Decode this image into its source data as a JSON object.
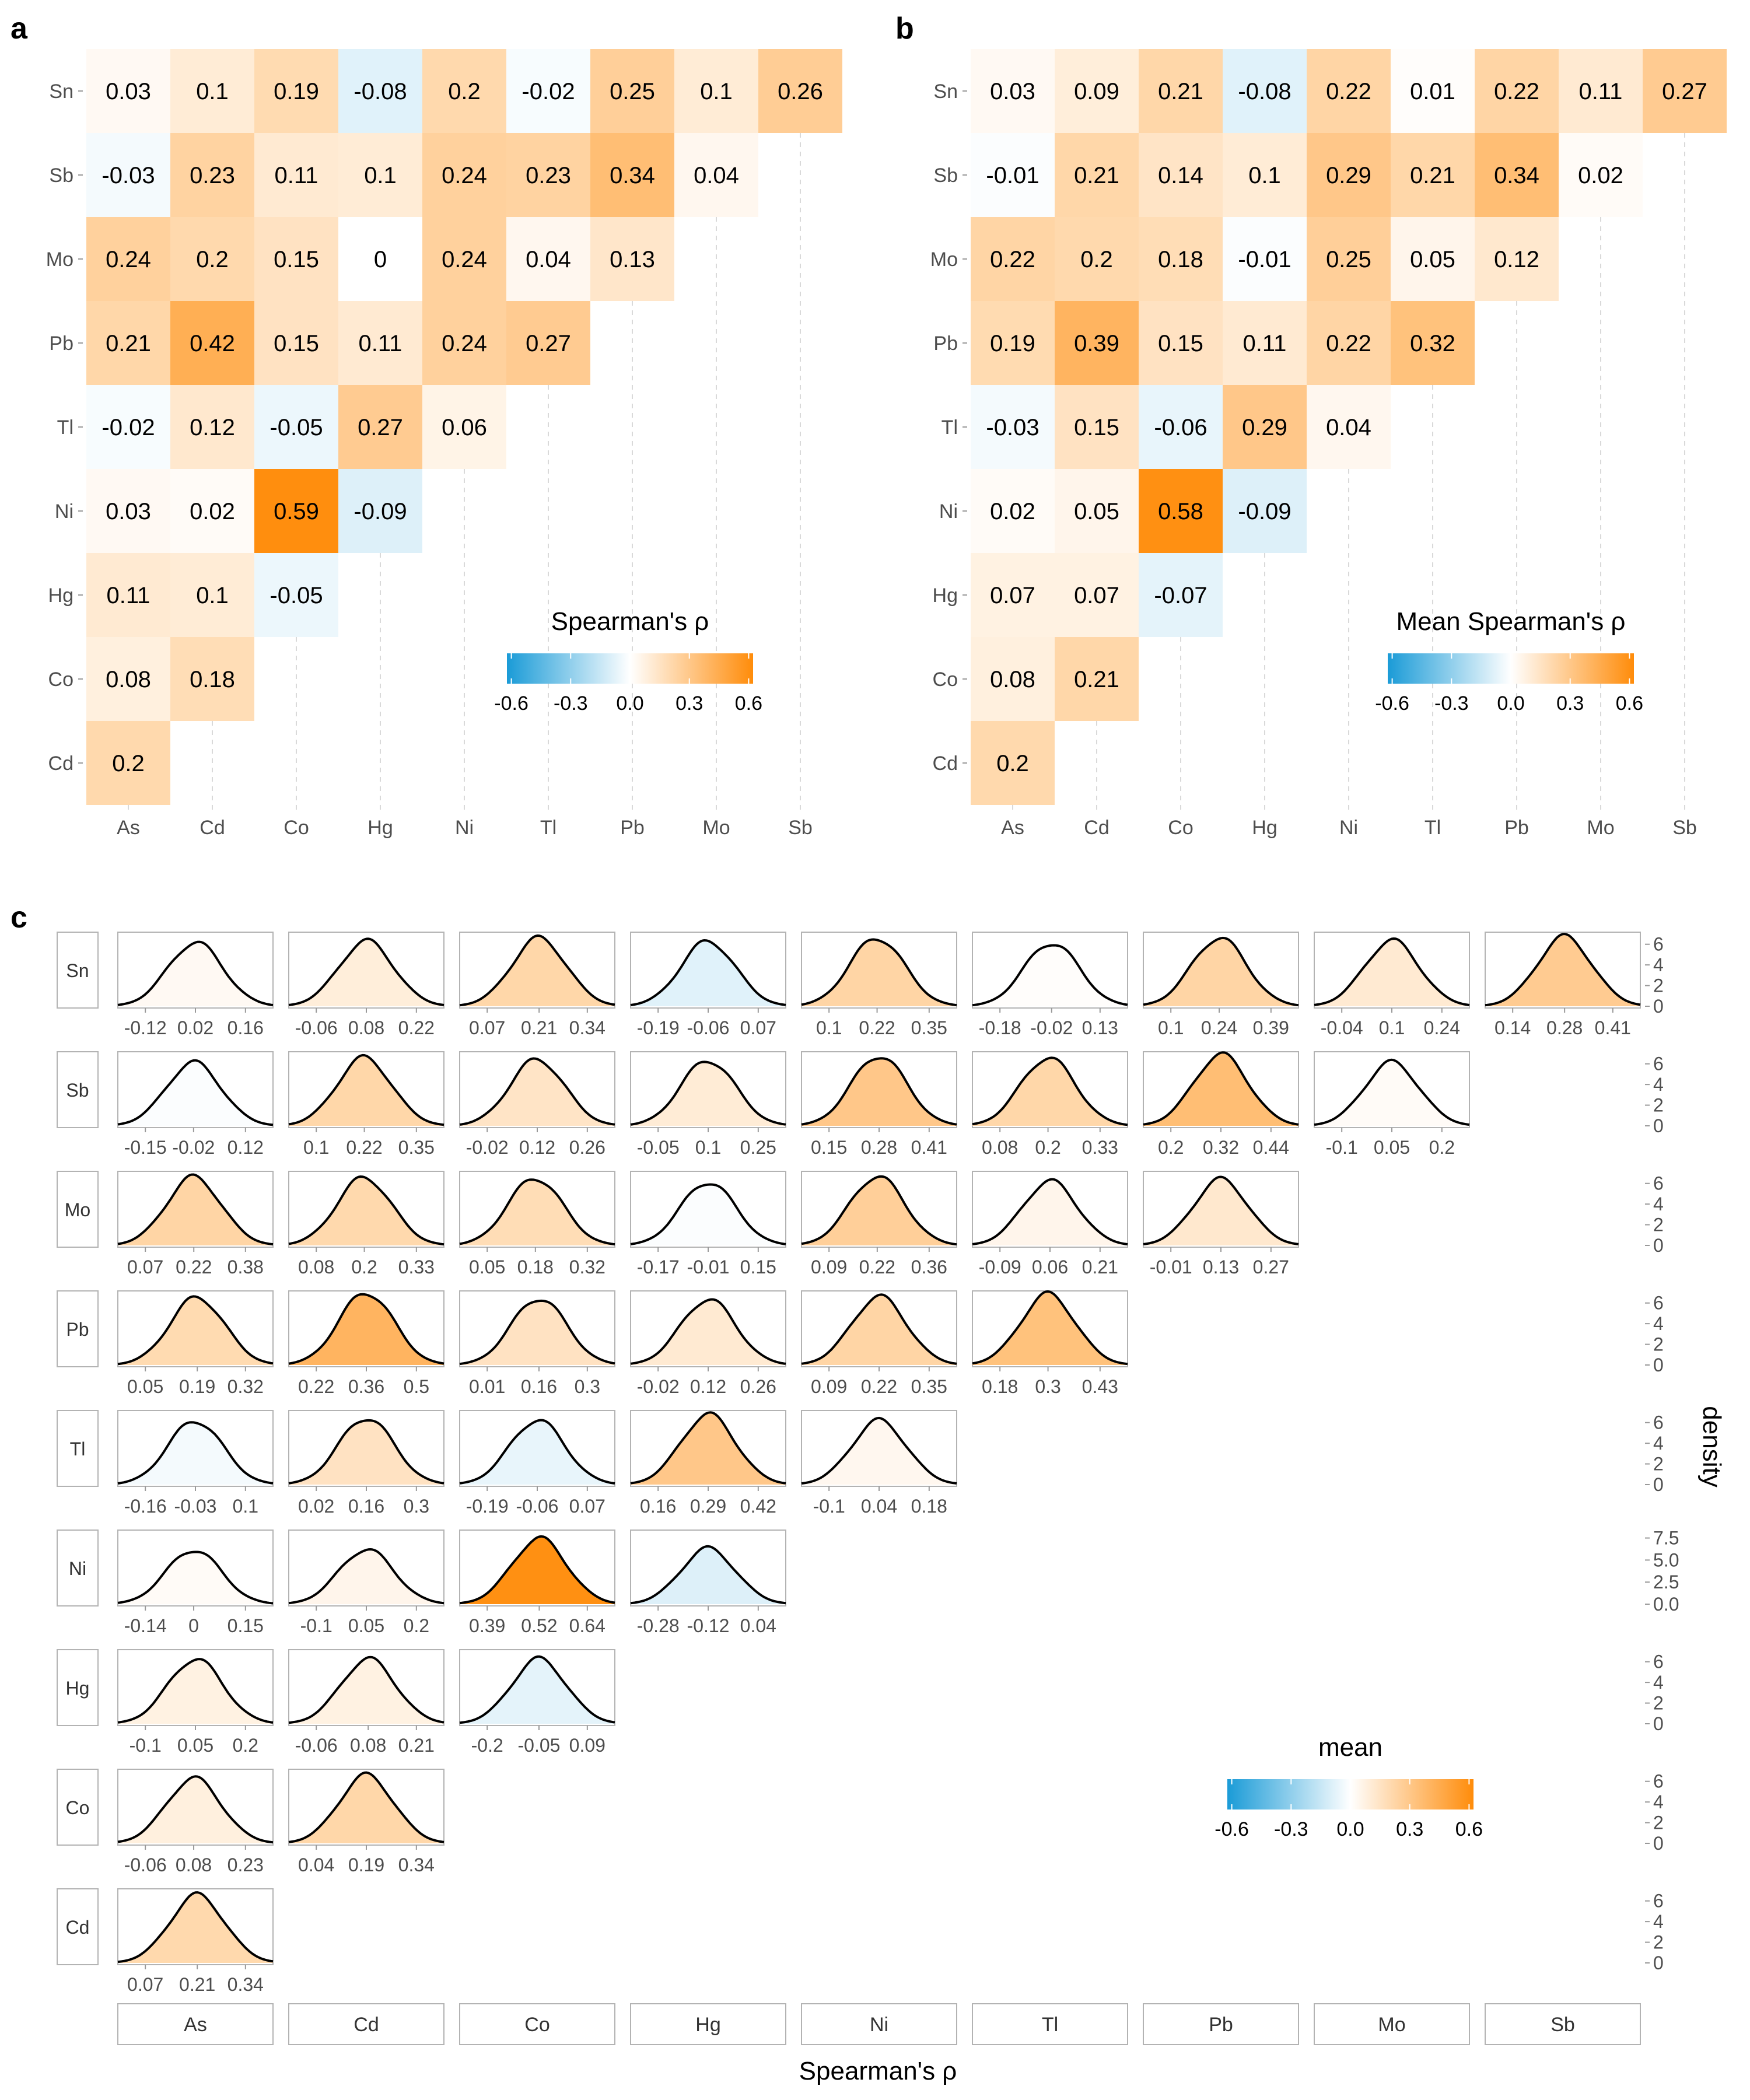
{
  "figure": {
    "panel_labels": [
      "a",
      "b",
      "c"
    ],
    "colors": {
      "negative": "#1a9bd7",
      "zero": "#ffffff",
      "positive": "#ff8c0a",
      "text": "#000000",
      "axis_text": "#4d4d4d",
      "strip_border": "#b3b3b3",
      "grid": "#d9d9d9"
    }
  },
  "chart_data": [
    {
      "panel": "a",
      "type": "heatmap",
      "x_categories": [
        "As",
        "Cd",
        "Co",
        "Hg",
        "Ni",
        "Tl",
        "Pb",
        "Mo",
        "Sb"
      ],
      "y_categories": [
        "Sn",
        "Sb",
        "Mo",
        "Pb",
        "Tl",
        "Ni",
        "Hg",
        "Co",
        "Cd"
      ],
      "values": [
        [
          "0.03",
          "0.1",
          "0.19",
          "-0.08",
          "0.2",
          "-0.02",
          "0.25",
          "0.1",
          "0.26"
        ],
        [
          "-0.03",
          "0.23",
          "0.11",
          "0.1",
          "0.24",
          "0.23",
          "0.34",
          "0.04"
        ],
        [
          "0.24",
          "0.2",
          "0.15",
          "0",
          "0.24",
          "0.04",
          "0.13"
        ],
        [
          "0.21",
          "0.42",
          "0.15",
          "0.11",
          "0.24",
          "0.27"
        ],
        [
          "-0.02",
          "0.12",
          "-0.05",
          "0.27",
          "0.06"
        ],
        [
          "0.03",
          "0.02",
          "0.59",
          "-0.09"
        ],
        [
          "0.11",
          "0.1",
          "-0.05"
        ],
        [
          "0.08",
          "0.18"
        ],
        [
          "0.2"
        ]
      ],
      "legend": {
        "title": "Spearman's ρ",
        "ticks": [
          "-0.6",
          "-0.3",
          "0.0",
          "0.3",
          "0.6"
        ],
        "range": [
          -0.6,
          0.6
        ]
      }
    },
    {
      "panel": "b",
      "type": "heatmap",
      "x_categories": [
        "As",
        "Cd",
        "Co",
        "Hg",
        "Ni",
        "Tl",
        "Pb",
        "Mo",
        "Sb"
      ],
      "y_categories": [
        "Sn",
        "Sb",
        "Mo",
        "Pb",
        "Tl",
        "Ni",
        "Hg",
        "Co",
        "Cd"
      ],
      "values": [
        [
          "0.03",
          "0.09",
          "0.21",
          "-0.08",
          "0.22",
          "0.01",
          "0.22",
          "0.11",
          "0.27"
        ],
        [
          "-0.01",
          "0.21",
          "0.14",
          "0.1",
          "0.29",
          "0.21",
          "0.34",
          "0.02"
        ],
        [
          "0.22",
          "0.2",
          "0.18",
          "-0.01",
          "0.25",
          "0.05",
          "0.12"
        ],
        [
          "0.19",
          "0.39",
          "0.15",
          "0.11",
          "0.22",
          "0.32"
        ],
        [
          "-0.03",
          "0.15",
          "-0.06",
          "0.29",
          "0.04"
        ],
        [
          "0.02",
          "0.05",
          "0.58",
          "-0.09"
        ],
        [
          "0.07",
          "0.07",
          "-0.07"
        ],
        [
          "0.08",
          "0.21"
        ],
        [
          "0.2"
        ]
      ],
      "legend": {
        "title": "Mean Spearman's ρ",
        "ticks": [
          "-0.6",
          "-0.3",
          "0.0",
          "0.3",
          "0.6"
        ],
        "range": [
          -0.6,
          0.6
        ]
      }
    },
    {
      "panel": "c",
      "type": "area",
      "description_of_rows": "density curves of Spearman's ρ, filled by mean",
      "col_strips": [
        "As",
        "Cd",
        "Co",
        "Hg",
        "Ni",
        "Tl",
        "Pb",
        "Mo",
        "Sb"
      ],
      "row_strips": [
        "Sn",
        "Sb",
        "Mo",
        "Pb",
        "Tl",
        "Ni",
        "Hg",
        "Co",
        "Cd"
      ],
      "xlabel": "Spearman's ρ",
      "ylabel": "density",
      "y_ticks": [
        [
          "6",
          "4",
          "2",
          "0"
        ],
        [
          "6",
          "4",
          "2",
          "0"
        ],
        [
          "6",
          "4",
          "2",
          "0"
        ],
        [
          "6",
          "4",
          "2",
          "0"
        ],
        [
          "6",
          "4",
          "2",
          "0"
        ],
        [
          "7.5",
          "5.0",
          "2.5",
          "0.0"
        ],
        [
          "6",
          "4",
          "2",
          "0"
        ],
        [
          "6",
          "4",
          "2",
          "0"
        ],
        [
          "6",
          "4",
          "2",
          "0"
        ]
      ],
      "y_range": [
        [
          0,
          7
        ],
        [
          0,
          7
        ],
        [
          0,
          7
        ],
        [
          0,
          7
        ],
        [
          0,
          7
        ],
        [
          0,
          8.2
        ],
        [
          0,
          7
        ],
        [
          0,
          7
        ],
        [
          0,
          7
        ]
      ],
      "cells": [
        [
          {
            "mean": 0.03,
            "ticks": [
              "-0.12",
              "0.02",
              "0.16"
            ]
          },
          {
            "mean": 0.09,
            "ticks": [
              "-0.06",
              "0.08",
              "0.22"
            ]
          },
          {
            "mean": 0.21,
            "ticks": [
              "0.07",
              "0.21",
              "0.34"
            ]
          },
          {
            "mean": -0.08,
            "ticks": [
              "-0.19",
              "-0.06",
              "0.07"
            ]
          },
          {
            "mean": 0.22,
            "ticks": [
              "0.1",
              "0.22",
              "0.35"
            ]
          },
          {
            "mean": 0.01,
            "ticks": [
              "-0.18",
              "-0.02",
              "0.13"
            ]
          },
          {
            "mean": 0.22,
            "ticks": [
              "0.1",
              "0.24",
              "0.39"
            ]
          },
          {
            "mean": 0.11,
            "ticks": [
              "-0.04",
              "0.1",
              "0.24"
            ]
          },
          {
            "mean": 0.27,
            "ticks": [
              "0.14",
              "0.28",
              "0.41"
            ]
          }
        ],
        [
          {
            "mean": -0.01,
            "ticks": [
              "-0.15",
              "-0.02",
              "0.12"
            ]
          },
          {
            "mean": 0.21,
            "ticks": [
              "0.1",
              "0.22",
              "0.35"
            ]
          },
          {
            "mean": 0.14,
            "ticks": [
              "-0.02",
              "0.12",
              "0.26"
            ]
          },
          {
            "mean": 0.1,
            "ticks": [
              "-0.05",
              "0.1",
              "0.25"
            ]
          },
          {
            "mean": 0.29,
            "ticks": [
              "0.15",
              "0.28",
              "0.41"
            ]
          },
          {
            "mean": 0.21,
            "ticks": [
              "0.08",
              "0.2",
              "0.33"
            ]
          },
          {
            "mean": 0.34,
            "ticks": [
              "0.2",
              "0.32",
              "0.44"
            ]
          },
          {
            "mean": 0.02,
            "ticks": [
              "-0.1",
              "0.05",
              "0.2"
            ]
          }
        ],
        [
          {
            "mean": 0.22,
            "ticks": [
              "0.07",
              "0.22",
              "0.38"
            ]
          },
          {
            "mean": 0.2,
            "ticks": [
              "0.08",
              "0.2",
              "0.33"
            ]
          },
          {
            "mean": 0.18,
            "ticks": [
              "0.05",
              "0.18",
              "0.32"
            ]
          },
          {
            "mean": -0.01,
            "ticks": [
              "-0.17",
              "-0.01",
              "0.15"
            ]
          },
          {
            "mean": 0.25,
            "ticks": [
              "0.09",
              "0.22",
              "0.36"
            ]
          },
          {
            "mean": 0.05,
            "ticks": [
              "-0.09",
              "0.06",
              "0.21"
            ]
          },
          {
            "mean": 0.12,
            "ticks": [
              "-0.01",
              "0.13",
              "0.27"
            ]
          }
        ],
        [
          {
            "mean": 0.19,
            "ticks": [
              "0.05",
              "0.19",
              "0.32"
            ]
          },
          {
            "mean": 0.39,
            "ticks": [
              "0.22",
              "0.36",
              "0.5"
            ]
          },
          {
            "mean": 0.15,
            "ticks": [
              "0.01",
              "0.16",
              "0.3"
            ]
          },
          {
            "mean": 0.11,
            "ticks": [
              "-0.02",
              "0.12",
              "0.26"
            ]
          },
          {
            "mean": 0.22,
            "ticks": [
              "0.09",
              "0.22",
              "0.35"
            ]
          },
          {
            "mean": 0.32,
            "ticks": [
              "0.18",
              "0.3",
              "0.43"
            ]
          }
        ],
        [
          {
            "mean": -0.03,
            "ticks": [
              "-0.16",
              "-0.03",
              "0.1"
            ]
          },
          {
            "mean": 0.15,
            "ticks": [
              "0.02",
              "0.16",
              "0.3"
            ]
          },
          {
            "mean": -0.06,
            "ticks": [
              "-0.19",
              "-0.06",
              "0.07"
            ]
          },
          {
            "mean": 0.29,
            "ticks": [
              "0.16",
              "0.29",
              "0.42"
            ]
          },
          {
            "mean": 0.04,
            "ticks": [
              "-0.1",
              "0.04",
              "0.18"
            ]
          }
        ],
        [
          {
            "mean": 0.02,
            "ticks": [
              "-0.14",
              "0",
              "0.15"
            ]
          },
          {
            "mean": 0.05,
            "ticks": [
              "-0.1",
              "0.05",
              "0.2"
            ]
          },
          {
            "mean": 0.58,
            "ticks": [
              "0.39",
              "0.52",
              "0.64"
            ]
          },
          {
            "mean": -0.09,
            "ticks": [
              "-0.28",
              "-0.12",
              "0.04"
            ]
          }
        ],
        [
          {
            "mean": 0.07,
            "ticks": [
              "-0.1",
              "0.05",
              "0.2"
            ]
          },
          {
            "mean": 0.07,
            "ticks": [
              "-0.06",
              "0.08",
              "0.21"
            ]
          },
          {
            "mean": -0.07,
            "ticks": [
              "-0.2",
              "-0.05",
              "0.09"
            ]
          }
        ],
        [
          {
            "mean": 0.08,
            "ticks": [
              "-0.06",
              "0.08",
              "0.23"
            ]
          },
          {
            "mean": 0.21,
            "ticks": [
              "0.04",
              "0.19",
              "0.34"
            ]
          }
        ],
        [
          {
            "mean": 0.2,
            "ticks": [
              "0.07",
              "0.21",
              "0.34"
            ]
          }
        ]
      ],
      "legend": {
        "title": "mean",
        "ticks": [
          "-0.6",
          "-0.3",
          "0.0",
          "0.3",
          "0.6"
        ],
        "range": [
          -0.6,
          0.6
        ]
      }
    }
  ]
}
